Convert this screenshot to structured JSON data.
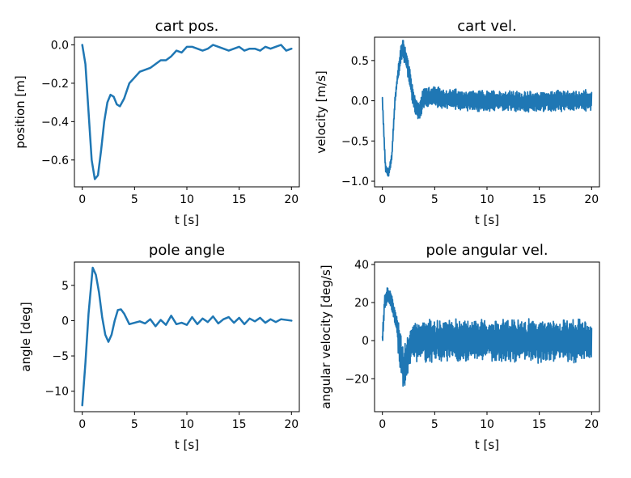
{
  "series_color": "#1f77b4",
  "chart_data": [
    {
      "type": "line",
      "title": "cart pos.",
      "xlabel": "t [s]",
      "ylabel": "position [m]",
      "xlim": [
        -0.75,
        20.75
      ],
      "ylim": [
        -0.74,
        0.04
      ],
      "xticks": [
        0,
        5,
        10,
        15,
        20
      ],
      "yticks": [
        0.0,
        -0.2,
        -0.4,
        -0.6
      ],
      "ytick_labels": [
        "0.0",
        "−0.2",
        "−0.4",
        "−0.6"
      ],
      "noise": 0,
      "series": [
        {
          "x": [
            0,
            0.3,
            0.6,
            0.9,
            1.2,
            1.5,
            1.8,
            2.1,
            2.4,
            2.7,
            3.0,
            3.3,
            3.6,
            4.0,
            4.5,
            5.0,
            5.5,
            6.0,
            6.5,
            7.0,
            7.5,
            8.0,
            8.5,
            9.0,
            9.5,
            10.0,
            10.5,
            11.0,
            11.5,
            12.0,
            12.5,
            13.0,
            13.5,
            14.0,
            14.5,
            15.0,
            15.5,
            16.0,
            16.5,
            17.0,
            17.5,
            18.0,
            18.5,
            19.0,
            19.5,
            20.0
          ],
          "y": [
            0.0,
            -0.1,
            -0.35,
            -0.6,
            -0.7,
            -0.68,
            -0.55,
            -0.4,
            -0.3,
            -0.26,
            -0.27,
            -0.31,
            -0.32,
            -0.28,
            -0.2,
            -0.17,
            -0.14,
            -0.13,
            -0.12,
            -0.1,
            -0.08,
            -0.08,
            -0.06,
            -0.03,
            -0.04,
            -0.01,
            -0.01,
            -0.02,
            -0.03,
            -0.02,
            0.0,
            -0.01,
            -0.02,
            -0.03,
            -0.02,
            -0.01,
            -0.03,
            -0.02,
            -0.02,
            -0.03,
            -0.01,
            -0.02,
            -0.01,
            0.0,
            -0.03,
            -0.02
          ]
        }
      ]
    },
    {
      "type": "line",
      "title": "cart vel.",
      "xlabel": "t [s]",
      "ylabel": "velocity [m/s]",
      "xlim": [
        -0.75,
        20.75
      ],
      "ylim": [
        -1.07,
        0.79
      ],
      "xticks": [
        0,
        5,
        10,
        15,
        20
      ],
      "yticks": [
        0.5,
        0.0,
        -0.5,
        -1.0
      ],
      "ytick_labels": [
        "0.5",
        "0.0",
        "−0.5",
        "−1.0"
      ],
      "noise": 0.14,
      "series": [
        {
          "x": [
            0,
            0.3,
            0.6,
            0.9,
            1.2,
            1.5,
            1.8,
            2.0,
            2.3,
            2.6,
            3.0,
            3.5,
            4.0,
            5.0,
            6.0,
            8.0,
            10.0,
            12.0,
            14.0,
            16.0,
            18.0,
            20.0
          ],
          "y": [
            0.0,
            -0.85,
            -0.9,
            -0.7,
            0.0,
            0.35,
            0.6,
            0.65,
            0.5,
            0.3,
            0.0,
            -0.15,
            0.05,
            0.05,
            0.02,
            0.0,
            0.0,
            0.0,
            -0.02,
            0.0,
            0.0,
            0.0
          ]
        }
      ]
    },
    {
      "type": "line",
      "title": "pole angle",
      "xlabel": "t [s]",
      "ylabel": "angle [deg]",
      "xlim": [
        -0.75,
        20.75
      ],
      "ylim": [
        -12.9,
        8.3
      ],
      "xticks": [
        0,
        5,
        10,
        15,
        20
      ],
      "yticks": [
        5,
        0,
        -5,
        -10
      ],
      "ytick_labels": [
        "5",
        "0",
        "−5",
        "−10"
      ],
      "noise": 0,
      "series": [
        {
          "x": [
            0,
            0.3,
            0.6,
            1.0,
            1.3,
            1.6,
            1.9,
            2.2,
            2.5,
            2.8,
            3.1,
            3.4,
            3.7,
            4.0,
            4.5,
            5.0,
            5.5,
            6.0,
            6.5,
            7.0,
            7.5,
            8.0,
            8.5,
            9.0,
            9.5,
            10.0,
            10.5,
            11.0,
            11.5,
            12.0,
            12.5,
            13.0,
            13.5,
            14.0,
            14.5,
            15.0,
            15.5,
            16.0,
            16.5,
            17.0,
            17.5,
            18.0,
            18.5,
            19.0,
            19.5,
            20.0
          ],
          "y": [
            -12.0,
            -6.0,
            1.0,
            7.5,
            6.5,
            4.0,
            0.5,
            -2.0,
            -3.0,
            -2.0,
            0.0,
            1.5,
            1.6,
            1.0,
            -0.5,
            -0.3,
            -0.1,
            -0.4,
            0.2,
            -0.8,
            0.1,
            -0.6,
            0.7,
            -0.5,
            -0.3,
            -0.6,
            0.5,
            -0.5,
            0.3,
            -0.2,
            0.6,
            -0.4,
            0.2,
            0.5,
            -0.3,
            0.4,
            -0.5,
            0.3,
            -0.1,
            0.4,
            -0.3,
            0.2,
            -0.2,
            0.2,
            0.1,
            0.0
          ]
        }
      ]
    },
    {
      "type": "line",
      "title": "pole angular vel.",
      "xlabel": "t [s]",
      "ylabel": "angular velocity [deg/s]",
      "xlim": [
        -0.75,
        20.75
      ],
      "ylim": [
        -37.3,
        41.3
      ],
      "xticks": [
        0,
        5,
        10,
        15,
        20
      ],
      "yticks": [
        40,
        20,
        0,
        -20
      ],
      "ytick_labels": [
        "40",
        "20",
        "0",
        "−20"
      ],
      "noise": 12,
      "series": [
        {
          "x": [
            0,
            0.2,
            0.5,
            0.8,
            1.1,
            1.4,
            1.7,
            2.0,
            2.3,
            2.6,
            3.0,
            3.5,
            4.0,
            5.0,
            6.0,
            8.0,
            10.0,
            12.0,
            14.0,
            16.0,
            18.0,
            20.0
          ],
          "y": [
            0,
            20,
            25,
            22,
            15,
            8,
            -5,
            -15,
            -10,
            -3,
            0,
            0,
            0,
            0,
            0,
            0,
            0,
            0,
            0,
            0,
            0,
            0
          ]
        }
      ]
    }
  ]
}
